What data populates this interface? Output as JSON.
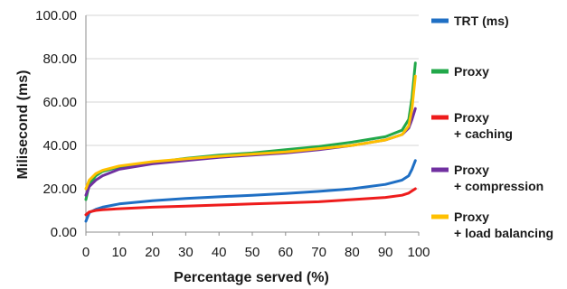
{
  "chart_data": {
    "type": "line",
    "title": "",
    "xlabel": "Percentage served (%)",
    "ylabel": "Milisecond (ms)",
    "xlim": [
      0,
      100
    ],
    "ylim": [
      0,
      100
    ],
    "x_ticks": [
      "0",
      "10",
      "20",
      "30",
      "40",
      "50",
      "60",
      "70",
      "80",
      "90",
      "100"
    ],
    "y_ticks": [
      "0.00",
      "20.00",
      "40.00",
      "60.00",
      "80.00",
      "100.00"
    ],
    "grid": "horizontal",
    "legend_position": "right",
    "series": [
      {
        "name": "TRT (ms)",
        "legend_lines": [
          "TRT (ms)"
        ],
        "color": "#1f6fc4",
        "points": [
          [
            0,
            5
          ],
          [
            1,
            9
          ],
          [
            3,
            10.5
          ],
          [
            5,
            11.5
          ],
          [
            10,
            13
          ],
          [
            20,
            14.5
          ],
          [
            30,
            15.5
          ],
          [
            40,
            16.3
          ],
          [
            50,
            17
          ],
          [
            60,
            17.8
          ],
          [
            70,
            18.8
          ],
          [
            80,
            20
          ],
          [
            90,
            22
          ],
          [
            95,
            24
          ],
          [
            97,
            26
          ],
          [
            98,
            29
          ],
          [
            99,
            33
          ]
        ]
      },
      {
        "name": "Proxy",
        "legend_lines": [
          "Proxy"
        ],
        "color": "#22a84a",
        "points": [
          [
            0,
            15
          ],
          [
            1,
            22
          ],
          [
            3,
            26
          ],
          [
            5,
            28
          ],
          [
            10,
            30
          ],
          [
            20,
            32
          ],
          [
            30,
            34
          ],
          [
            40,
            35.5
          ],
          [
            50,
            36.5
          ],
          [
            60,
            38
          ],
          [
            70,
            39.5
          ],
          [
            80,
            41.5
          ],
          [
            90,
            44
          ],
          [
            95,
            47
          ],
          [
            97,
            52
          ],
          [
            98,
            62
          ],
          [
            99,
            78
          ]
        ]
      },
      {
        "name": "Proxy + caching",
        "legend_lines": [
          "Proxy",
          "+ caching"
        ],
        "color": "#ee1c1c",
        "points": [
          [
            0,
            8
          ],
          [
            1,
            9.3
          ],
          [
            3,
            10
          ],
          [
            5,
            10.3
          ],
          [
            10,
            10.8
          ],
          [
            20,
            11.5
          ],
          [
            30,
            12
          ],
          [
            40,
            12.5
          ],
          [
            50,
            13
          ],
          [
            60,
            13.5
          ],
          [
            70,
            14
          ],
          [
            80,
            15
          ],
          [
            90,
            16
          ],
          [
            95,
            17
          ],
          [
            97,
            18
          ],
          [
            98,
            19
          ],
          [
            99,
            20
          ]
        ]
      },
      {
        "name": "Proxy + compression",
        "legend_lines": [
          "Proxy",
          "+ compression"
        ],
        "color": "#7030a0",
        "points": [
          [
            0,
            17
          ],
          [
            1,
            21
          ],
          [
            3,
            24
          ],
          [
            5,
            26
          ],
          [
            10,
            29
          ],
          [
            20,
            31.5
          ],
          [
            30,
            33
          ],
          [
            40,
            34.5
          ],
          [
            50,
            35.5
          ],
          [
            60,
            36.5
          ],
          [
            70,
            38
          ],
          [
            80,
            40
          ],
          [
            90,
            42.5
          ],
          [
            95,
            45
          ],
          [
            97,
            48
          ],
          [
            98,
            52
          ],
          [
            99,
            57
          ]
        ]
      },
      {
        "name": "Proxy + load balancing",
        "legend_lines": [
          "Proxy",
          "+ load balancing"
        ],
        "color": "#ffc000",
        "points": [
          [
            0,
            20
          ],
          [
            1,
            24
          ],
          [
            3,
            27
          ],
          [
            5,
            28.5
          ],
          [
            10,
            30.5
          ],
          [
            20,
            32.5
          ],
          [
            30,
            33.8
          ],
          [
            40,
            35
          ],
          [
            50,
            36
          ],
          [
            60,
            37
          ],
          [
            70,
            38.5
          ],
          [
            80,
            40
          ],
          [
            90,
            42.5
          ],
          [
            95,
            45
          ],
          [
            97,
            49
          ],
          [
            98,
            57
          ],
          [
            99,
            72
          ]
        ]
      }
    ]
  }
}
